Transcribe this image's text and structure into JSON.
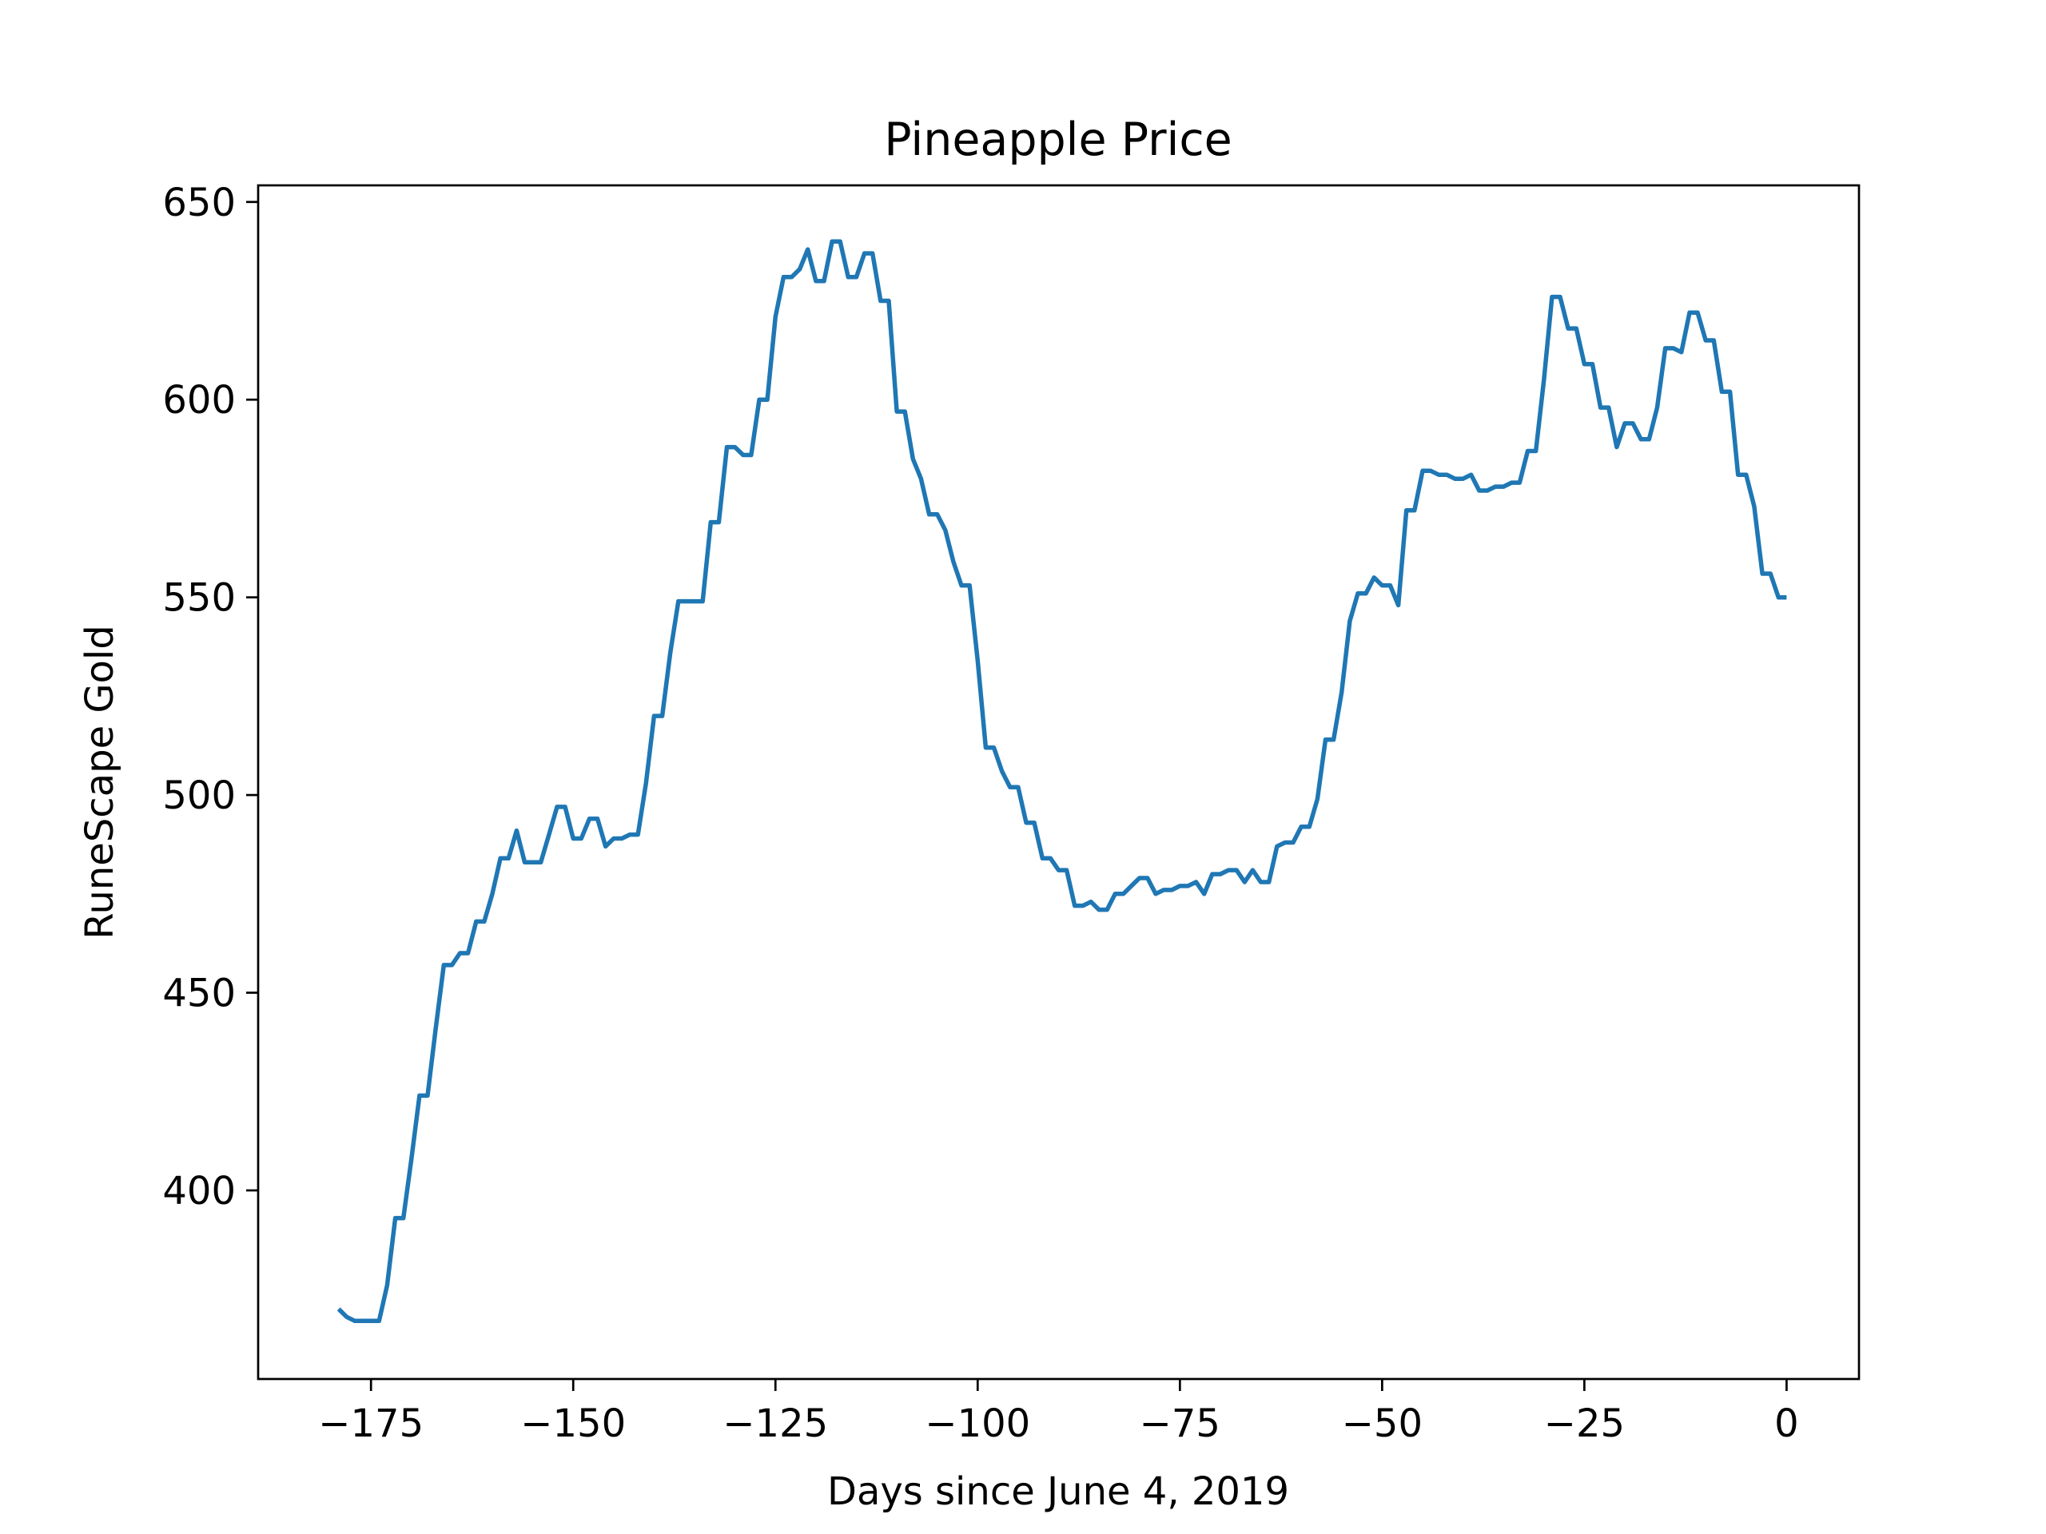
{
  "chart_data": {
    "type": "line",
    "title": "Pineapple Price",
    "xlabel": "Days since June 4, 2019",
    "ylabel": "RuneScape Gold",
    "xlim": [
      -188.95,
      8.95
    ],
    "ylim": [
      352.3,
      654.2
    ],
    "xticks": [
      -175,
      -150,
      -125,
      -100,
      -75,
      -50,
      -25,
      0
    ],
    "xtick_labels": [
      "−175",
      "−150",
      "−125",
      "−100",
      "−75",
      "−50",
      "−25",
      "0"
    ],
    "yticks": [
      400,
      450,
      500,
      550,
      600,
      650
    ],
    "ytick_labels": [
      "400",
      "450",
      "500",
      "550",
      "600",
      "650"
    ],
    "grid": false,
    "legend": "none",
    "line_color": "#1f77b4",
    "series": [
      {
        "x": [
          -179,
          -178,
          -177,
          -176,
          -175,
          -174,
          -173,
          -172,
          -171,
          -170,
          -169,
          -168,
          -167,
          -166,
          -165,
          -164,
          -163,
          -162,
          -161,
          -160,
          -159,
          -158,
          -157,
          -156,
          -155,
          -154,
          -153,
          -152,
          -151,
          -150,
          -149,
          -148,
          -147,
          -146,
          -145,
          -144,
          -143,
          -142,
          -141,
          -140,
          -139,
          -138,
          -137,
          -136,
          -135,
          -134,
          -133,
          -132,
          -131,
          -130,
          -129,
          -128,
          -127,
          -126,
          -125,
          -124,
          -123,
          -122,
          -121,
          -120,
          -119,
          -118,
          -117,
          -116,
          -115,
          -114,
          -113,
          -112,
          -111,
          -110,
          -109,
          -108,
          -107,
          -106,
          -105,
          -104,
          -103,
          -102,
          -101,
          -100,
          -99,
          -98,
          -97,
          -96,
          -95,
          -94,
          -93,
          -92,
          -91,
          -90,
          -89,
          -88,
          -87,
          -86,
          -85,
          -84,
          -83,
          -82,
          -81,
          -80,
          -79,
          -78,
          -77,
          -76,
          -75,
          -74,
          -73,
          -72,
          -71,
          -70,
          -69,
          -68,
          -67,
          -66,
          -65,
          -64,
          -63,
          -62,
          -61,
          -60,
          -59,
          -58,
          -57,
          -56,
          -55,
          -54,
          -53,
          -52,
          -51,
          -50,
          -49,
          -48,
          -47,
          -46,
          -45,
          -44,
          -43,
          -42,
          -41,
          -40,
          -39,
          -38,
          -37,
          -36,
          -35,
          -34,
          -33,
          -32,
          -31,
          -30,
          -29,
          -28,
          -27,
          -26,
          -25,
          -24,
          -23,
          -22,
          -21,
          -20,
          -19,
          -18,
          -17,
          -16,
          -15,
          -14,
          -13,
          -12,
          -11,
          -10,
          -9,
          -8,
          -7,
          -6,
          -5,
          -4,
          -3,
          -2,
          -1,
          0
        ],
        "y": [
          370,
          368,
          367,
          367,
          367,
          367,
          376,
          393,
          393,
          408,
          424,
          424,
          441,
          457,
          457,
          460,
          460,
          468,
          468,
          475,
          484,
          484,
          491,
          483,
          483,
          483,
          490,
          497,
          497,
          489,
          489,
          494,
          494,
          487,
          489,
          489,
          490,
          490,
          503,
          520,
          520,
          536,
          549,
          549,
          549,
          549,
          569,
          569,
          588,
          588,
          586,
          586,
          600,
          600,
          621,
          631,
          631,
          633,
          638,
          630,
          630,
          640,
          640,
          631,
          631,
          637,
          637,
          625,
          625,
          597,
          597,
          585,
          580,
          571,
          571,
          567,
          559,
          553,
          553,
          534,
          512,
          512,
          506,
          502,
          502,
          493,
          493,
          484,
          484,
          481,
          481,
          472,
          472,
          473,
          471,
          471,
          475,
          475,
          477,
          479,
          479,
          475,
          476,
          476,
          477,
          477,
          478,
          475,
          480,
          480,
          481,
          481,
          478,
          481,
          478,
          478,
          487,
          488,
          488,
          492,
          492,
          499,
          514,
          514,
          526,
          544,
          551,
          551,
          555,
          553,
          553,
          548,
          572,
          572,
          582,
          582,
          581,
          581,
          580,
          580,
          581,
          577,
          577,
          578,
          578,
          579,
          579,
          587,
          587,
          605,
          626,
          626,
          618,
          618,
          609,
          609,
          598,
          598,
          588,
          594,
          594,
          590,
          590,
          598,
          613,
          613,
          612,
          622,
          622,
          615,
          615,
          602,
          602,
          581,
          581,
          573,
          556,
          556,
          550,
          550
        ]
      }
    ]
  }
}
